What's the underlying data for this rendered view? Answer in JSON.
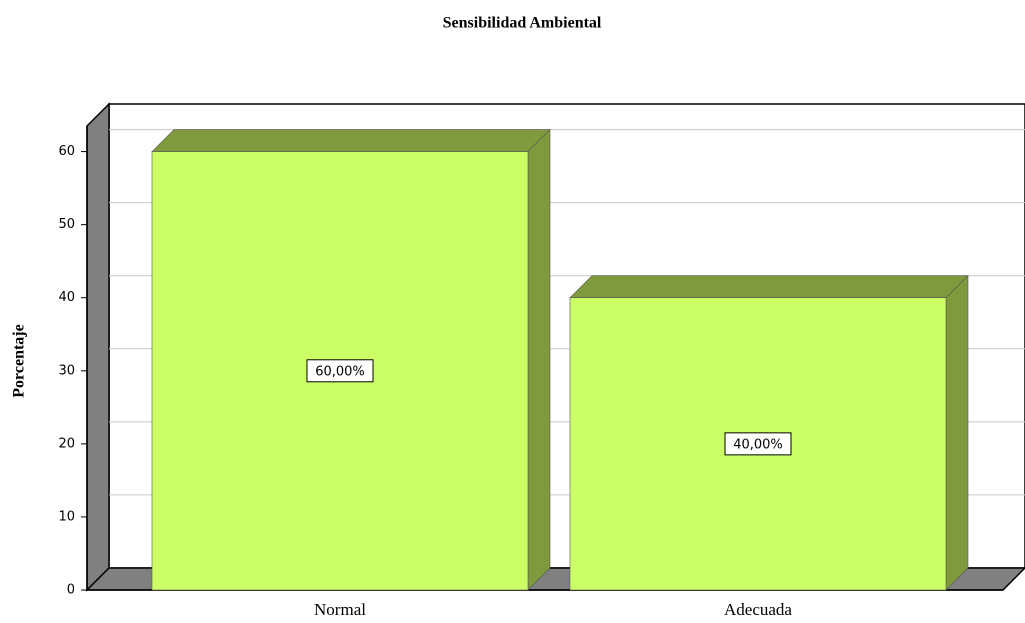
{
  "chart_data": {
    "type": "bar",
    "title": "Sensibilidad Ambiental",
    "y_label": "Porcentaje",
    "categories": [
      "Normal",
      "Adecuada"
    ],
    "values": [
      60,
      40
    ],
    "value_labels": [
      "60,00%",
      "40,00%"
    ],
    "color": "#ccff66",
    "side_color": "#7f9a3c",
    "ylim": [
      0,
      63.5
    ],
    "yticks": [
      0,
      10,
      20,
      30,
      40,
      50,
      60
    ],
    "grid": true
  }
}
